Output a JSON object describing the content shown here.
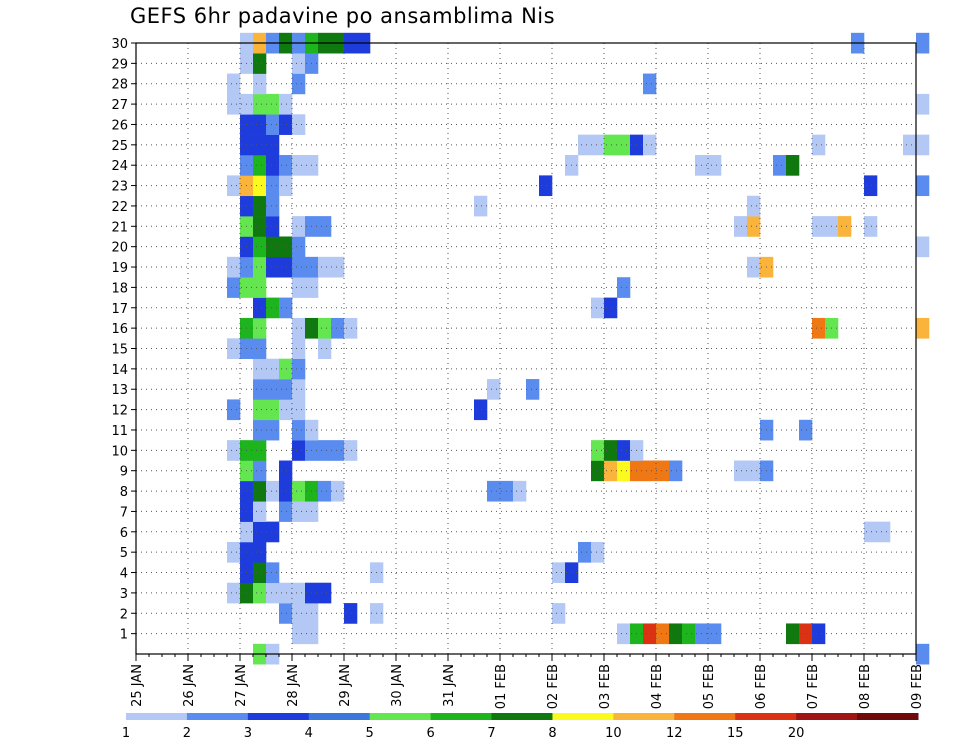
{
  "chart_data": {
    "type": "heatmap",
    "title": "GEFS 6hr padavine po ansamblima Nis",
    "x_tick_labels": [
      "25 JAN",
      "26 JAN",
      "27 JAN",
      "28 JAN",
      "29 JAN",
      "30 JAN",
      "31 JAN",
      "01 FEB",
      "02 FEB",
      "03 FEB",
      "04 FEB",
      "05 FEB",
      "06 FEB",
      "07 FEB",
      "08 FEB",
      "09 FEB"
    ],
    "y_tick_labels": [
      "1",
      "2",
      "3",
      "4",
      "5",
      "6",
      "7",
      "8",
      "9",
      "10",
      "11",
      "12",
      "13",
      "14",
      "15",
      "16",
      "17",
      "18",
      "19",
      "20",
      "21",
      "22",
      "23",
      "24",
      "25",
      "26",
      "27",
      "28",
      "29",
      "30"
    ],
    "x_unit": "days since 25 JAN 00Z (6-hourly steps, 4 per day)",
    "xlim": [
      0,
      15
    ],
    "ylim": [
      0,
      30
    ],
    "grid": true,
    "color_levels": [
      1,
      2,
      3,
      4,
      5,
      6,
      7,
      8,
      10,
      12,
      15,
      20
    ],
    "colorbar_labels": [
      "1",
      "2",
      "3",
      "4",
      "5",
      "6",
      "7",
      "8",
      "10",
      "12",
      "15",
      "20"
    ],
    "colorbar_colors": [
      "#b4c8f5",
      "#5a8cf0",
      "#1e3cdc",
      "#3c78dc",
      "#64e650",
      "#1eb41e",
      "#0f780f",
      "#fafa1e",
      "#fab43c",
      "#f07814",
      "#dc3214",
      "#a01414",
      "#6e0a0a"
    ],
    "cell_colors": {
      "1": "#b4c8f5",
      "2": "#5a8cf0",
      "3": "#1e3cdc",
      "5": "#64e650",
      "6": "#1eb41e",
      "7": "#0f780f",
      "8": "#fafa1e",
      "9": "#fab43c",
      "10": "#f07814",
      "12": "#dc3214",
      "15": "#a01414"
    },
    "cells": [
      [
        1,
        9.25,
        1
      ],
      [
        1,
        9.5,
        6
      ],
      [
        1,
        9.75,
        12
      ],
      [
        1,
        10.0,
        10
      ],
      [
        1,
        10.25,
        7
      ],
      [
        1,
        10.5,
        6
      ],
      [
        1,
        10.75,
        2
      ],
      [
        1,
        11.0,
        2
      ],
      [
        1,
        12.5,
        7
      ],
      [
        1,
        12.75,
        12
      ],
      [
        1,
        13.0,
        3
      ],
      [
        1,
        3.0,
        1
      ],
      [
        1,
        3.25,
        1
      ],
      [
        2,
        4.0,
        3
      ],
      [
        2,
        2.75,
        2
      ],
      [
        2,
        3.0,
        1
      ],
      [
        2,
        3.25,
        1
      ],
      [
        2,
        4.5,
        1
      ],
      [
        2,
        8.0,
        1
      ],
      [
        3,
        1.75,
        1
      ],
      [
        3,
        2.0,
        7
      ],
      [
        3,
        2.25,
        5
      ],
      [
        3,
        2.5,
        1
      ],
      [
        3,
        2.75,
        1
      ],
      [
        3,
        3.0,
        1
      ],
      [
        3,
        3.25,
        3
      ],
      [
        3,
        3.5,
        3
      ],
      [
        4,
        2.0,
        3
      ],
      [
        4,
        2.25,
        7
      ],
      [
        4,
        2.5,
        2
      ],
      [
        4,
        4.5,
        1
      ],
      [
        4,
        8.0,
        1
      ],
      [
        4,
        8.25,
        3
      ],
      [
        5,
        1.75,
        1
      ],
      [
        5,
        2.0,
        3
      ],
      [
        5,
        2.25,
        3
      ],
      [
        5,
        8.5,
        2
      ],
      [
        5,
        8.75,
        1
      ],
      [
        6,
        2.0,
        1
      ],
      [
        6,
        2.25,
        3
      ],
      [
        6,
        2.5,
        3
      ],
      [
        6,
        14.0,
        1
      ],
      [
        6,
        14.25,
        1
      ],
      [
        7,
        2.0,
        3
      ],
      [
        7,
        2.25,
        1
      ],
      [
        7,
        2.75,
        2
      ],
      [
        7,
        3.0,
        1
      ],
      [
        7,
        3.25,
        1
      ],
      [
        8,
        2.0,
        3
      ],
      [
        8,
        2.25,
        7
      ],
      [
        8,
        2.5,
        1
      ],
      [
        8,
        2.75,
        3
      ],
      [
        8,
        3.0,
        5
      ],
      [
        8,
        3.25,
        6
      ],
      [
        8,
        3.5,
        2
      ],
      [
        8,
        3.75,
        1
      ],
      [
        8,
        6.75,
        2
      ],
      [
        8,
        7.0,
        2
      ],
      [
        8,
        7.25,
        1
      ],
      [
        9,
        2.0,
        5
      ],
      [
        9,
        2.25,
        2
      ],
      [
        9,
        2.75,
        3
      ],
      [
        9,
        8.75,
        7
      ],
      [
        9,
        9.0,
        9
      ],
      [
        9,
        9.25,
        8
      ],
      [
        9,
        9.5,
        10
      ],
      [
        9,
        9.75,
        10
      ],
      [
        9,
        10.0,
        10
      ],
      [
        9,
        10.25,
        2
      ],
      [
        9,
        11.5,
        1
      ],
      [
        9,
        11.75,
        1
      ],
      [
        9,
        12.0,
        2
      ],
      [
        10,
        1.75,
        1
      ],
      [
        10,
        2.0,
        6
      ],
      [
        10,
        2.25,
        6
      ],
      [
        10,
        3.0,
        3
      ],
      [
        10,
        3.25,
        2
      ],
      [
        10,
        3.5,
        2
      ],
      [
        10,
        3.75,
        2
      ],
      [
        10,
        4.0,
        1
      ],
      [
        10,
        8.75,
        5
      ],
      [
        10,
        9.0,
        7
      ],
      [
        10,
        9.25,
        3
      ],
      [
        10,
        9.5,
        1
      ],
      [
        11,
        2.25,
        2
      ],
      [
        11,
        2.5,
        2
      ],
      [
        11,
        3.0,
        2
      ],
      [
        11,
        3.25,
        1
      ],
      [
        11,
        12.0,
        2
      ],
      [
        11,
        12.75,
        2
      ],
      [
        12,
        2.25,
        5
      ],
      [
        12,
        2.5,
        5
      ],
      [
        12,
        2.75,
        1
      ],
      [
        12,
        3.0,
        1
      ],
      [
        12,
        1.75,
        2
      ],
      [
        12,
        6.5,
        3
      ],
      [
        13,
        2.25,
        2
      ],
      [
        13,
        2.5,
        2
      ],
      [
        13,
        2.75,
        2
      ],
      [
        13,
        3.0,
        1
      ],
      [
        13,
        6.75,
        1
      ],
      [
        13,
        7.5,
        2
      ],
      [
        14,
        2.25,
        1
      ],
      [
        14,
        2.5,
        1
      ],
      [
        14,
        2.75,
        5
      ],
      [
        14,
        3.0,
        2
      ],
      [
        15,
        1.75,
        1
      ],
      [
        15,
        2.0,
        2
      ],
      [
        15,
        2.25,
        2
      ],
      [
        15,
        3.0,
        1
      ],
      [
        15,
        3.5,
        1
      ],
      [
        16,
        2.0,
        6
      ],
      [
        16,
        2.25,
        5
      ],
      [
        16,
        3.0,
        1
      ],
      [
        16,
        3.25,
        7
      ],
      [
        16,
        3.5,
        5
      ],
      [
        16,
        3.75,
        2
      ],
      [
        16,
        4.0,
        1
      ],
      [
        16,
        13.0,
        10
      ],
      [
        16,
        13.25,
        5
      ],
      [
        16,
        15.0,
        9
      ],
      [
        17,
        2.25,
        3
      ],
      [
        17,
        2.5,
        6
      ],
      [
        17,
        2.75,
        2
      ],
      [
        17,
        8.75,
        1
      ],
      [
        17,
        9.0,
        3
      ],
      [
        18,
        1.75,
        2
      ],
      [
        18,
        2.0,
        5
      ],
      [
        18,
        2.25,
        5
      ],
      [
        18,
        3.0,
        1
      ],
      [
        18,
        3.25,
        1
      ],
      [
        18,
        9.25,
        2
      ],
      [
        19,
        1.75,
        1
      ],
      [
        19,
        2.0,
        2
      ],
      [
        19,
        2.25,
        5
      ],
      [
        19,
        2.5,
        3
      ],
      [
        19,
        2.75,
        3
      ],
      [
        19,
        3.0,
        2
      ],
      [
        19,
        3.25,
        2
      ],
      [
        19,
        3.5,
        1
      ],
      [
        19,
        3.75,
        1
      ],
      [
        19,
        11.75,
        1
      ],
      [
        19,
        12.0,
        9
      ],
      [
        20,
        2.0,
        3
      ],
      [
        20,
        2.25,
        6
      ],
      [
        20,
        2.5,
        7
      ],
      [
        20,
        2.75,
        7
      ],
      [
        20,
        3.0,
        2
      ],
      [
        20,
        15.0,
        1
      ],
      [
        21,
        2.0,
        5
      ],
      [
        21,
        2.25,
        7
      ],
      [
        21,
        2.5,
        3
      ],
      [
        21,
        3.0,
        1
      ],
      [
        21,
        3.25,
        2
      ],
      [
        21,
        3.5,
        2
      ],
      [
        21,
        11.5,
        1
      ],
      [
        21,
        11.75,
        9
      ],
      [
        21,
        13.0,
        1
      ],
      [
        21,
        13.25,
        1
      ],
      [
        21,
        13.5,
        9
      ],
      [
        21,
        14.0,
        1
      ],
      [
        22,
        2.0,
        3
      ],
      [
        22,
        2.25,
        7
      ],
      [
        22,
        2.5,
        2
      ],
      [
        22,
        6.5,
        1
      ],
      [
        22,
        11.75,
        1
      ],
      [
        23,
        1.75,
        1
      ],
      [
        23,
        2.0,
        9
      ],
      [
        23,
        2.25,
        8
      ],
      [
        23,
        2.5,
        2
      ],
      [
        23,
        2.75,
        1
      ],
      [
        23,
        7.75,
        3
      ],
      [
        23,
        14.0,
        3
      ],
      [
        23,
        15.0,
        2
      ],
      [
        24,
        2.0,
        2
      ],
      [
        24,
        2.25,
        6
      ],
      [
        24,
        2.5,
        3
      ],
      [
        24,
        2.75,
        2
      ],
      [
        24,
        3.0,
        1
      ],
      [
        24,
        3.25,
        1
      ],
      [
        24,
        8.25,
        1
      ],
      [
        24,
        10.75,
        1
      ],
      [
        24,
        11.0,
        1
      ],
      [
        24,
        12.25,
        2
      ],
      [
        24,
        12.5,
        7
      ],
      [
        25,
        2.0,
        3
      ],
      [
        25,
        2.25,
        3
      ],
      [
        25,
        2.5,
        3
      ],
      [
        25,
        8.5,
        1
      ],
      [
        25,
        8.75,
        1
      ],
      [
        25,
        9.0,
        5
      ],
      [
        25,
        9.25,
        5
      ],
      [
        25,
        9.5,
        3
      ],
      [
        25,
        9.75,
        1
      ],
      [
        25,
        13.0,
        1
      ],
      [
        25,
        14.75,
        1
      ],
      [
        25,
        15.0,
        1
      ],
      [
        26,
        2.0,
        3
      ],
      [
        26,
        2.25,
        3
      ],
      [
        26,
        2.5,
        2
      ],
      [
        26,
        2.75,
        3
      ],
      [
        26,
        3.0,
        1
      ],
      [
        27,
        1.75,
        1
      ],
      [
        27,
        2.0,
        1
      ],
      [
        27,
        2.25,
        5
      ],
      [
        27,
        2.5,
        5
      ],
      [
        27,
        2.75,
        1
      ],
      [
        27,
        15.0,
        1
      ],
      [
        28,
        1.75,
        1
      ],
      [
        28,
        2.25,
        1
      ],
      [
        28,
        3.0,
        2
      ],
      [
        28,
        9.75,
        2
      ],
      [
        29,
        2.0,
        1
      ],
      [
        29,
        2.25,
        7
      ],
      [
        29,
        3.0,
        1
      ],
      [
        29,
        3.25,
        2
      ],
      [
        30,
        2.0,
        1
      ],
      [
        30,
        2.25,
        9
      ],
      [
        30,
        2.5,
        2
      ],
      [
        30,
        2.75,
        7
      ],
      [
        30,
        3.0,
        2
      ],
      [
        30,
        3.25,
        6
      ],
      [
        30,
        3.5,
        7
      ],
      [
        30,
        3.75,
        7
      ],
      [
        30,
        4.0,
        3
      ],
      [
        30,
        4.25,
        3
      ],
      [
        30,
        13.75,
        2
      ],
      [
        30,
        15.0,
        2
      ],
      [
        0,
        2.25,
        5
      ],
      [
        0,
        2.5,
        1
      ],
      [
        0,
        15.0,
        2
      ]
    ]
  }
}
